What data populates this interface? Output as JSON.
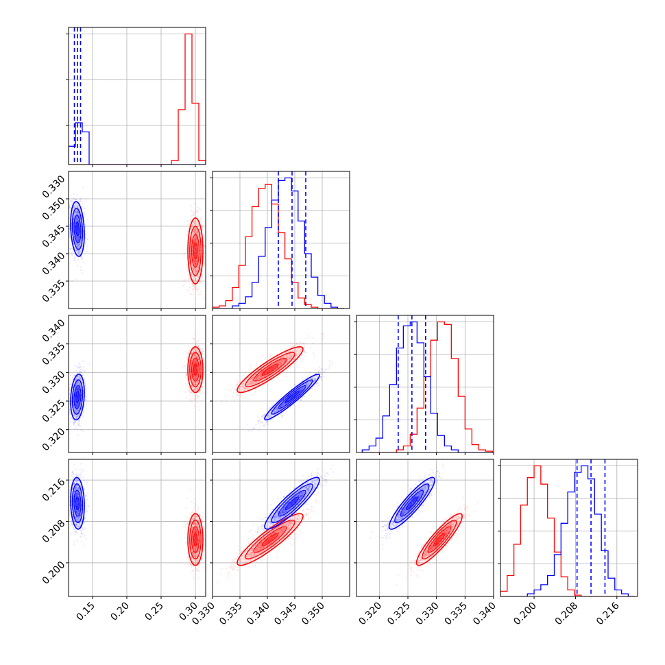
{
  "chart_data": {
    "type": "corner",
    "grid": true,
    "colors": {
      "red": "#ff0000",
      "blue": "#0000ff"
    },
    "parameters": [
      {
        "xlim": [
          0.115,
          0.315
        ],
        "ticks": [
          0.15,
          0.2,
          0.25,
          0.3
        ],
        "tick_labels": [
          "0.15",
          "0.20",
          "0.25",
          "0.30"
        ]
      },
      {
        "xlim": [
          0.33,
          0.355
        ],
        "ticks": [
          0.33,
          0.335,
          0.34,
          0.345,
          0.35
        ],
        "tick_labels": [
          "0.330",
          "0.335",
          "0.340",
          "0.345",
          "0.350"
        ]
      },
      {
        "xlim": [
          0.316,
          0.34
        ],
        "ticks": [
          0.32,
          0.325,
          0.33,
          0.335,
          0.34
        ],
        "tick_labels": [
          "0.320",
          "0.325",
          "0.330",
          "0.335",
          "0.340"
        ]
      },
      {
        "xlim": [
          0.1935,
          0.22
        ],
        "ticks": [
          0.2,
          0.208,
          0.216
        ],
        "tick_labels": [
          "0.200",
          "0.208",
          "0.216"
        ]
      }
    ],
    "series": [
      {
        "color": "red",
        "means": [
          0.3,
          0.3405,
          0.3305,
          0.2045
        ],
        "stds": [
          0.0055,
          0.003,
          0.002,
          0.0025
        ]
      },
      {
        "color": "blue",
        "means": [
          0.128,
          0.3445,
          0.3257,
          0.2115
        ],
        "stds": [
          0.005,
          0.0025,
          0.002,
          0.0025
        ]
      }
    ],
    "correlations": {
      "red": {
        "1-0": 0.0,
        "2-0": 0.0,
        "3-0": 0.0,
        "2-1": 0.9,
        "3-1": 0.9,
        "3-2": 0.9
      },
      "blue": {
        "1-0": -0.2,
        "2-0": 0.2,
        "3-0": -0.1,
        "2-1": 0.95,
        "3-1": 0.9,
        "3-2": 0.9
      }
    },
    "quantile_lines": {
      "color": "blue",
      "values": [
        [
          0.1235,
          0.128,
          0.1325
        ],
        [
          0.342,
          0.3445,
          0.347
        ],
        [
          0.3233,
          0.3257,
          0.3281
        ],
        [
          0.2083,
          0.211,
          0.2137
        ]
      ]
    },
    "histograms": [
      {
        "bins": [
          0.115,
          0.125,
          0.135,
          0.145,
          0.155,
          0.165,
          0.175,
          0.185,
          0.195,
          0.205,
          0.215,
          0.225,
          0.235,
          0.245,
          0.255,
          0.265,
          0.275,
          0.285,
          0.295,
          0.305,
          0.315
        ],
        "red": [
          0,
          0,
          0,
          0,
          0,
          0,
          0,
          0,
          0,
          0,
          0,
          0,
          0,
          0,
          0,
          0.03,
          0.42,
          1.0,
          0.47,
          0.03
        ],
        "blue": [
          0.14,
          0.32,
          0.25,
          0,
          0,
          0,
          0,
          0,
          0,
          0,
          0,
          0,
          0,
          0,
          0,
          0,
          0,
          0,
          0,
          0
        ],
        "ymax": 1.05,
        "yticks": [
          0.3,
          0.65,
          1.0
        ]
      },
      {
        "bins": [
          0.33,
          0.3312,
          0.3324,
          0.3336,
          0.3348,
          0.336,
          0.3372,
          0.3384,
          0.3396,
          0.3408,
          0.342,
          0.3432,
          0.3444,
          0.3456,
          0.3468,
          0.348,
          0.3492,
          0.3504,
          0.3516,
          0.3528,
          0.354
        ],
        "red": [
          0.01,
          0.02,
          0.06,
          0.16,
          0.33,
          0.55,
          0.78,
          0.92,
          0.95,
          0.8,
          0.58,
          0.38,
          0.2,
          0.08,
          0.03,
          0.01,
          0,
          0,
          0,
          0
        ],
        "blue": [
          0,
          0,
          0,
          0.02,
          0.04,
          0.09,
          0.2,
          0.4,
          0.62,
          0.83,
          0.98,
          1.0,
          0.9,
          0.67,
          0.42,
          0.24,
          0.1,
          0.04,
          0.01,
          0
        ],
        "ymax": 1.05,
        "yticks": [
          0.25,
          0.5,
          0.75,
          1.0
        ]
      },
      {
        "bins": [
          0.317,
          0.3182,
          0.3194,
          0.3206,
          0.3218,
          0.323,
          0.3242,
          0.3254,
          0.3266,
          0.3278,
          0.329,
          0.3302,
          0.3314,
          0.3326,
          0.3338,
          0.335,
          0.3362,
          0.3374,
          0.3386,
          0.3398,
          0.341
        ],
        "red": [
          0,
          0,
          0,
          0,
          0,
          0.02,
          0.05,
          0.14,
          0.34,
          0.58,
          0.86,
          1.0,
          0.98,
          0.72,
          0.43,
          0.18,
          0.06,
          0.02,
          0.01,
          0
        ],
        "blue": [
          0.02,
          0.05,
          0.11,
          0.28,
          0.52,
          0.8,
          0.97,
          1.0,
          0.84,
          0.58,
          0.3,
          0.13,
          0.05,
          0.02,
          0,
          0,
          0,
          0,
          0,
          0
        ],
        "ymax": 1.05,
        "yticks": [
          0.25,
          0.5,
          0.75,
          1.0
        ]
      },
      {
        "bins": [
          0.1935,
          0.1948,
          0.1961,
          0.1974,
          0.1987,
          0.2,
          0.2013,
          0.2026,
          0.2039,
          0.2052,
          0.2065,
          0.2078,
          0.2091,
          0.2104,
          0.2117,
          0.213,
          0.2143,
          0.2156,
          0.2169,
          0.2182,
          0.2195
        ],
        "red": [
          0.04,
          0.16,
          0.4,
          0.7,
          0.91,
          1.0,
          0.86,
          0.6,
          0.34,
          0.15,
          0.05,
          0.01,
          0,
          0,
          0,
          0,
          0,
          0,
          0,
          0
        ],
        "blue": [
          0,
          0,
          0,
          0,
          0.02,
          0.05,
          0.09,
          0.16,
          0.32,
          0.56,
          0.8,
          0.95,
          1.0,
          0.9,
          0.63,
          0.35,
          0.14,
          0.05,
          0.02,
          0
        ],
        "ymax": 1.05,
        "yticks": [
          0.25,
          0.5,
          0.75,
          1.0
        ]
      }
    ],
    "row_axes": [
      null,
      {
        "ylim": [
          0.33,
          0.355
        ],
        "ticks": [
          0.335,
          0.34,
          0.345,
          0.35
        ],
        "tick_labels": [
          "0.335",
          "0.340",
          "0.345",
          "0.350"
        ],
        "top_label": "0.330"
      },
      {
        "ylim": [
          0.316,
          0.34
        ],
        "ticks": [
          0.32,
          0.325,
          0.33,
          0.335
        ],
        "tick_labels": [
          "0.320",
          "0.325",
          "0.330",
          "0.335"
        ],
        "top_label": "0.340"
      },
      {
        "ylim": [
          0.1935,
          0.22
        ],
        "ticks": [
          0.2,
          0.208,
          0.216
        ],
        "tick_labels": [
          "0.200",
          "0.208",
          "0.216"
        ],
        "top_label": null
      }
    ]
  }
}
